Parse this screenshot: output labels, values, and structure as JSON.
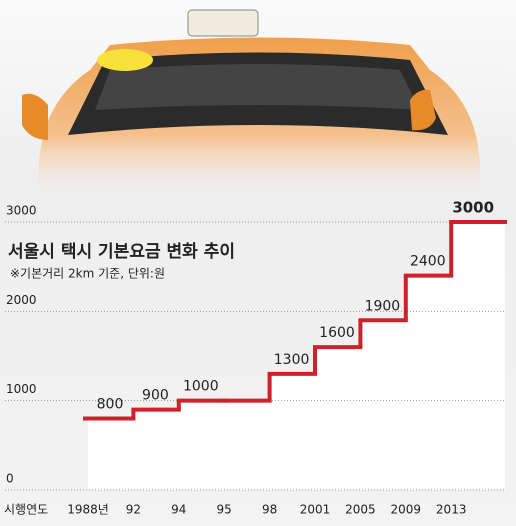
{
  "chart_data": {
    "type": "step",
    "title": "서울시 택시 기본요금 변화 추이",
    "subtitle": "※기본거리 2km 기준, 단위:원",
    "x_label": "시행연도",
    "categories": [
      "1988년",
      "92",
      "94",
      "95",
      "98",
      "2001",
      "2005",
      "2009",
      "2013"
    ],
    "values": [
      800,
      900,
      1000,
      1000,
      1300,
      1600,
      1900,
      2400,
      3000
    ],
    "color": "#d0202a",
    "ylim": [
      0,
      3000
    ],
    "yticks": [
      0,
      1000,
      2000,
      3000
    ],
    "grid": true
  }
}
